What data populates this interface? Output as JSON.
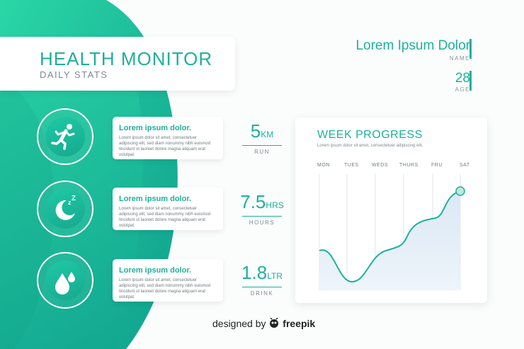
{
  "header": {
    "title": "HEALTH MONITOR",
    "subtitle": "DAILY STATS"
  },
  "profile": {
    "name_value": "Lorem Ipsum Dolor",
    "name_label": "NAME",
    "age_value": "28",
    "age_label": "AGE"
  },
  "stats": [
    {
      "icon": "running-person-icon",
      "card_title": "Lorem ipsum dolor.",
      "card_text": "Lorem ipsum dolor sit amet, consectetuer adipiscing elit, sed diam nonummy nibh euismod tincidunt ut laoreet dolore magna aliquam erat volutpat.",
      "value": "5",
      "unit": "KM",
      "label": "RUN"
    },
    {
      "icon": "moon-sleep-icon",
      "card_title": "Lorem ipsum dolor.",
      "card_text": "Lorem ipsum dolor sit amet, consectetuer adipiscing elit, sed diam nonummy nibh euismod tincidunt ut laoreet dolore magna aliquam erat volutpat.",
      "value": "7.5",
      "unit": "HRS",
      "label": "HOURS"
    },
    {
      "icon": "water-drops-icon",
      "card_title": "Lorem ipsum dolor.",
      "card_text": "Lorem ipsum dolor sit amet, consectetuer adipiscing elit, sed diam nonummy nibh euismod tincidunt ut laoreet dolore magna aliquam erat volutpat.",
      "value": "1.8",
      "unit": "LTR",
      "label": "DRINK"
    }
  ],
  "week": {
    "title": "WEEK PROGRESS",
    "description": "Lorem ipsum dolor sit amet, consectetuer adipiscing elit.",
    "days": [
      "MON",
      "TUES",
      "WEDS",
      "THURS",
      "FRU",
      "SAT"
    ],
    "accent": "#1fb09a"
  },
  "credit": {
    "prefix": "designed by",
    "brand": "freepik"
  },
  "colors": {
    "accent": "#1fb09a",
    "gradient_light": "#23d3a8",
    "gradient_dark": "#10a38f"
  }
}
